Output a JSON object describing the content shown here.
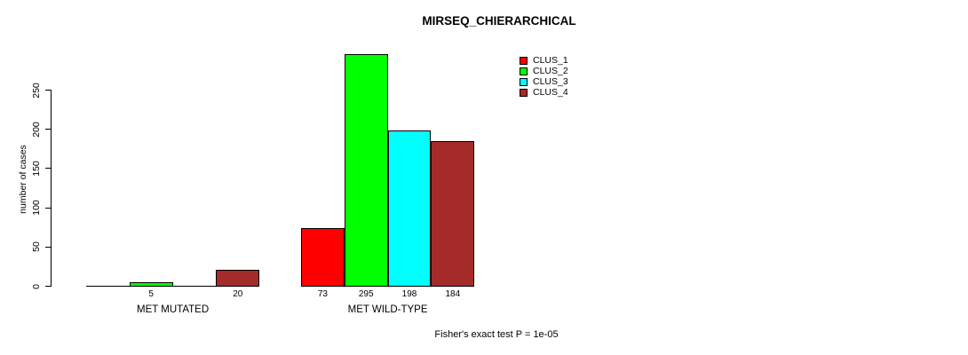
{
  "title": "MIRSEQ_CHIERARCHICAL",
  "footer": "Fisher's exact test P = 1e-05",
  "colors": {
    "bar_border": "#000000",
    "background": "#ffffff"
  },
  "chart_data": {
    "type": "bar",
    "title": "MIRSEQ_CHIERARCHICAL",
    "xlabel": "",
    "ylabel": "number of cases",
    "yticks": [
      0,
      50,
      100,
      150,
      200,
      250
    ],
    "ylim": [
      0,
      250
    ],
    "grid": false,
    "legend_position": "top-right",
    "categories": [
      "MET MUTATED",
      "MET WILD-TYPE"
    ],
    "series": [
      {
        "name": "CLUS_1",
        "color": "#ff0000",
        "values": [
          0,
          73
        ],
        "labels": [
          "",
          "73"
        ]
      },
      {
        "name": "CLUS_2",
        "color": "#00ff00",
        "values": [
          5,
          295
        ],
        "labels": [
          "5",
          "295"
        ]
      },
      {
        "name": "CLUS_3",
        "color": "#00ffff",
        "values": [
          0,
          198
        ],
        "labels": [
          "",
          "198"
        ]
      },
      {
        "name": "CLUS_4",
        "color": "#a52a2a",
        "values": [
          20,
          184
        ],
        "labels": [
          "20",
          "184"
        ]
      }
    ],
    "annotation": "Fisher's exact test P = 1e-05"
  },
  "legend": {
    "items": [
      {
        "label": "CLUS_1",
        "color": "#ff0000"
      },
      {
        "label": "CLUS_2",
        "color": "#00ff00"
      },
      {
        "label": "CLUS_3",
        "color": "#00ffff"
      },
      {
        "label": "CLUS_4",
        "color": "#a52a2a"
      }
    ]
  }
}
